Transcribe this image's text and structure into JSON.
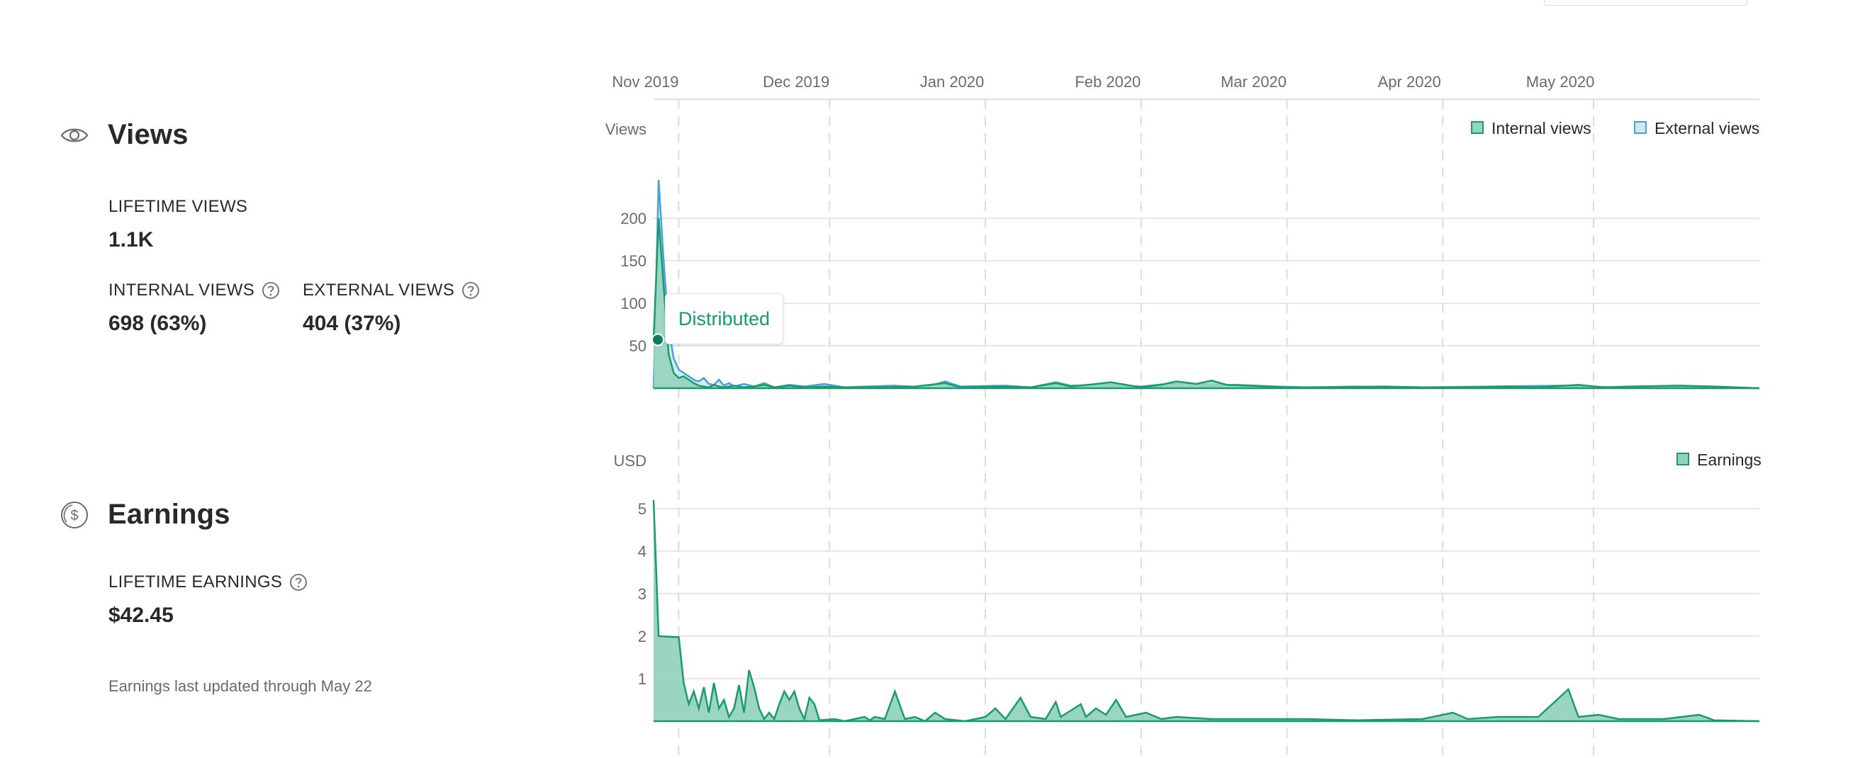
{
  "colors": {
    "internal_fill": "#95d4bc",
    "internal_stroke": "#1a9b6c",
    "external_fill": "#cde9f7",
    "external_stroke": "#4a9fd8",
    "earnings_fill": "#95d4bc",
    "earnings_stroke": "#1a9b6c",
    "grid": "#e6e6e6",
    "month_line": "#dcdcdc",
    "accent": "#159a72"
  },
  "views": {
    "title": "Views",
    "icon": "eye-icon",
    "lifetime_label": "LIFETIME VIEWS",
    "lifetime_value": "1.1K",
    "internal_label": "INTERNAL VIEWS",
    "internal_value": "698 (63%)",
    "external_label": "EXTERNAL VIEWS",
    "external_value": "404 (37%)"
  },
  "earnings": {
    "title": "Earnings",
    "icon": "dollar-coin-icon",
    "lifetime_label": "LIFETIME EARNINGS",
    "lifetime_value": "$42.45",
    "note": "Earnings last updated through May 22"
  },
  "tooltip": {
    "label": "Distributed"
  },
  "chart_data": [
    {
      "type": "area",
      "x_axis": {
        "type": "date",
        "range": [
          "2019-10-27",
          "2020-06-03"
        ],
        "tick_labels": [
          "Nov 2019",
          "Dec 2019",
          "Jan 2020",
          "Feb 2020",
          "Mar 2020",
          "Apr 2020",
          "May 2020"
        ],
        "tick_dates": [
          "2019-11-01",
          "2019-12-01",
          "2020-01-01",
          "2020-02-01",
          "2020-03-01",
          "2020-04-01",
          "2020-05-01"
        ]
      },
      "ylabel": "Views",
      "yticks": [
        50,
        100,
        150,
        200
      ],
      "ylim": [
        0,
        250
      ],
      "grid": true,
      "legend": "top-right",
      "annotation": {
        "label": "Distributed",
        "x": "2019-10-27",
        "y": 57
      },
      "series": [
        {
          "name": "External views",
          "points": [
            [
              "2019-10-27",
              0
            ],
            [
              "2019-10-28",
              245
            ],
            [
              "2019-10-29",
              150
            ],
            [
              "2019-10-30",
              70
            ],
            [
              "2019-10-31",
              35
            ],
            [
              "2019-11-01",
              22
            ],
            [
              "2019-11-02",
              18
            ],
            [
              "2019-11-03",
              14
            ],
            [
              "2019-11-04",
              10
            ],
            [
              "2019-11-05",
              8
            ],
            [
              "2019-11-06",
              12
            ],
            [
              "2019-11-07",
              5
            ],
            [
              "2019-11-08",
              4
            ],
            [
              "2019-11-09",
              10
            ],
            [
              "2019-11-10",
              3
            ],
            [
              "2019-11-11",
              6
            ],
            [
              "2019-11-12",
              2
            ],
            [
              "2019-11-14",
              5
            ],
            [
              "2019-11-16",
              2
            ],
            [
              "2019-11-18",
              6
            ],
            [
              "2019-11-20",
              1
            ],
            [
              "2019-11-23",
              4
            ],
            [
              "2019-11-26",
              2
            ],
            [
              "2019-11-30",
              5
            ],
            [
              "2019-12-04",
              1
            ],
            [
              "2019-12-08",
              2
            ],
            [
              "2019-12-14",
              3
            ],
            [
              "2019-12-20",
              1
            ],
            [
              "2019-12-24",
              8
            ],
            [
              "2019-12-27",
              2
            ],
            [
              "2020-01-05",
              3
            ],
            [
              "2020-01-10",
              1
            ],
            [
              "2020-01-15",
              7
            ],
            [
              "2020-01-18",
              3
            ],
            [
              "2020-01-25",
              4
            ],
            [
              "2020-02-01",
              2
            ],
            [
              "2020-02-06",
              5
            ],
            [
              "2020-02-10",
              6
            ],
            [
              "2020-02-14",
              3
            ],
            [
              "2020-02-20",
              4
            ],
            [
              "2020-02-28",
              2
            ],
            [
              "2020-03-05",
              1
            ],
            [
              "2020-03-15",
              2
            ],
            [
              "2020-03-28",
              1
            ],
            [
              "2020-04-10",
              2
            ],
            [
              "2020-04-25",
              3
            ],
            [
              "2020-05-05",
              1
            ],
            [
              "2020-05-15",
              2
            ],
            [
              "2020-05-25",
              1
            ],
            [
              "2020-06-03",
              0
            ]
          ]
        },
        {
          "name": "Internal views",
          "points": [
            [
              "2019-10-27",
              57
            ],
            [
              "2019-10-28",
              200
            ],
            [
              "2019-10-29",
              120
            ],
            [
              "2019-10-30",
              40
            ],
            [
              "2019-10-31",
              18
            ],
            [
              "2019-11-01",
              12
            ],
            [
              "2019-11-02",
              14
            ],
            [
              "2019-11-03",
              10
            ],
            [
              "2019-11-04",
              6
            ],
            [
              "2019-11-05",
              3
            ],
            [
              "2019-11-06",
              2
            ],
            [
              "2019-11-07",
              1
            ],
            [
              "2019-11-08",
              4
            ],
            [
              "2019-11-09",
              2
            ],
            [
              "2019-11-10",
              1
            ],
            [
              "2019-11-12",
              3
            ],
            [
              "2019-11-14",
              1
            ],
            [
              "2019-11-16",
              2
            ],
            [
              "2019-11-18",
              4
            ],
            [
              "2019-11-20",
              1
            ],
            [
              "2019-11-23",
              3
            ],
            [
              "2019-11-26",
              1
            ],
            [
              "2019-11-30",
              2
            ],
            [
              "2019-12-04",
              1
            ],
            [
              "2019-12-10",
              1
            ],
            [
              "2019-12-18",
              2
            ],
            [
              "2019-12-24",
              6
            ],
            [
              "2019-12-27",
              1
            ],
            [
              "2020-01-03",
              2
            ],
            [
              "2020-01-10",
              1
            ],
            [
              "2020-01-15",
              6
            ],
            [
              "2020-01-18",
              2
            ],
            [
              "2020-01-23",
              5
            ],
            [
              "2020-01-26",
              7
            ],
            [
              "2020-02-01",
              1
            ],
            [
              "2020-02-05",
              4
            ],
            [
              "2020-02-08",
              8
            ],
            [
              "2020-02-12",
              5
            ],
            [
              "2020-02-15",
              9
            ],
            [
              "2020-02-18",
              4
            ],
            [
              "2020-02-22",
              3
            ],
            [
              "2020-03-01",
              1
            ],
            [
              "2020-03-10",
              1
            ],
            [
              "2020-03-20",
              2
            ],
            [
              "2020-03-28",
              1
            ],
            [
              "2020-04-05",
              1
            ],
            [
              "2020-04-15",
              2
            ],
            [
              "2020-04-20",
              1
            ],
            [
              "2020-04-28",
              4
            ],
            [
              "2020-05-03",
              1
            ],
            [
              "2020-05-08",
              2
            ],
            [
              "2020-05-18",
              3
            ],
            [
              "2020-05-25",
              2
            ],
            [
              "2020-06-03",
              0
            ]
          ]
        }
      ]
    },
    {
      "type": "area",
      "x_axis": {
        "type": "date",
        "range": [
          "2019-10-27",
          "2020-06-03"
        ]
      },
      "ylabel": "USD",
      "yticks": [
        1,
        2,
        3,
        4,
        5
      ],
      "ylim": [
        0,
        5.3
      ],
      "grid": true,
      "legend": "top-right",
      "series": [
        {
          "name": "Earnings",
          "points": [
            [
              "2019-10-27",
              5.2
            ],
            [
              "2019-10-28",
              2.0
            ],
            [
              "2019-10-31",
              1.98
            ],
            [
              "2019-11-01",
              1.98
            ],
            [
              "2019-11-02",
              0.9
            ],
            [
              "2019-11-03",
              0.4
            ],
            [
              "2019-11-04",
              0.7
            ],
            [
              "2019-11-05",
              0.3
            ],
            [
              "2019-11-06",
              0.8
            ],
            [
              "2019-11-07",
              0.2
            ],
            [
              "2019-11-08",
              0.9
            ],
            [
              "2019-11-09",
              0.3
            ],
            [
              "2019-11-10",
              0.5
            ],
            [
              "2019-11-11",
              0.1
            ],
            [
              "2019-11-12",
              0.3
            ],
            [
              "2019-11-13",
              0.85
            ],
            [
              "2019-11-14",
              0.2
            ],
            [
              "2019-11-15",
              1.2
            ],
            [
              "2019-11-16",
              0.8
            ],
            [
              "2019-11-17",
              0.3
            ],
            [
              "2019-11-18",
              0.05
            ],
            [
              "2019-11-19",
              0.2
            ],
            [
              "2019-11-20",
              0.05
            ],
            [
              "2019-11-21",
              0.4
            ],
            [
              "2019-11-22",
              0.7
            ],
            [
              "2019-11-23",
              0.5
            ],
            [
              "2019-11-24",
              0.7
            ],
            [
              "2019-11-25",
              0.3
            ],
            [
              "2019-11-26",
              0.05
            ],
            [
              "2019-11-27",
              0.55
            ],
            [
              "2019-11-28",
              0.4
            ],
            [
              "2019-11-29",
              0.02
            ],
            [
              "2019-12-02",
              0.05
            ],
            [
              "2019-12-04",
              0.0
            ],
            [
              "2019-12-08",
              0.1
            ],
            [
              "2019-12-09",
              0.02
            ],
            [
              "2019-12-10",
              0.1
            ],
            [
              "2019-12-12",
              0.05
            ],
            [
              "2019-12-14",
              0.7
            ],
            [
              "2019-12-16",
              0.05
            ],
            [
              "2019-12-18",
              0.1
            ],
            [
              "2019-12-20",
              0.0
            ],
            [
              "2019-12-22",
              0.2
            ],
            [
              "2019-12-24",
              0.05
            ],
            [
              "2019-12-28",
              0.0
            ],
            [
              "2020-01-01",
              0.1
            ],
            [
              "2020-01-03",
              0.3
            ],
            [
              "2020-01-05",
              0.05
            ],
            [
              "2020-01-08",
              0.55
            ],
            [
              "2020-01-10",
              0.1
            ],
            [
              "2020-01-13",
              0.05
            ],
            [
              "2020-01-15",
              0.45
            ],
            [
              "2020-01-16",
              0.1
            ],
            [
              "2020-01-18",
              0.25
            ],
            [
              "2020-01-20",
              0.4
            ],
            [
              "2020-01-21",
              0.1
            ],
            [
              "2020-01-23",
              0.3
            ],
            [
              "2020-01-25",
              0.15
            ],
            [
              "2020-01-27",
              0.5
            ],
            [
              "2020-01-29",
              0.1
            ],
            [
              "2020-02-02",
              0.2
            ],
            [
              "2020-02-05",
              0.05
            ],
            [
              "2020-02-08",
              0.1
            ],
            [
              "2020-02-15",
              0.05
            ],
            [
              "2020-02-25",
              0.05
            ],
            [
              "2020-03-05",
              0.05
            ],
            [
              "2020-03-15",
              0.02
            ],
            [
              "2020-03-28",
              0.05
            ],
            [
              "2020-04-03",
              0.2
            ],
            [
              "2020-04-06",
              0.05
            ],
            [
              "2020-04-12",
              0.1
            ],
            [
              "2020-04-20",
              0.1
            ],
            [
              "2020-04-26",
              0.75
            ],
            [
              "2020-04-28",
              0.1
            ],
            [
              "2020-05-02",
              0.15
            ],
            [
              "2020-05-06",
              0.05
            ],
            [
              "2020-05-15",
              0.05
            ],
            [
              "2020-05-22",
              0.15
            ],
            [
              "2020-05-25",
              0.02
            ],
            [
              "2020-06-03",
              0.0
            ]
          ]
        }
      ]
    }
  ]
}
